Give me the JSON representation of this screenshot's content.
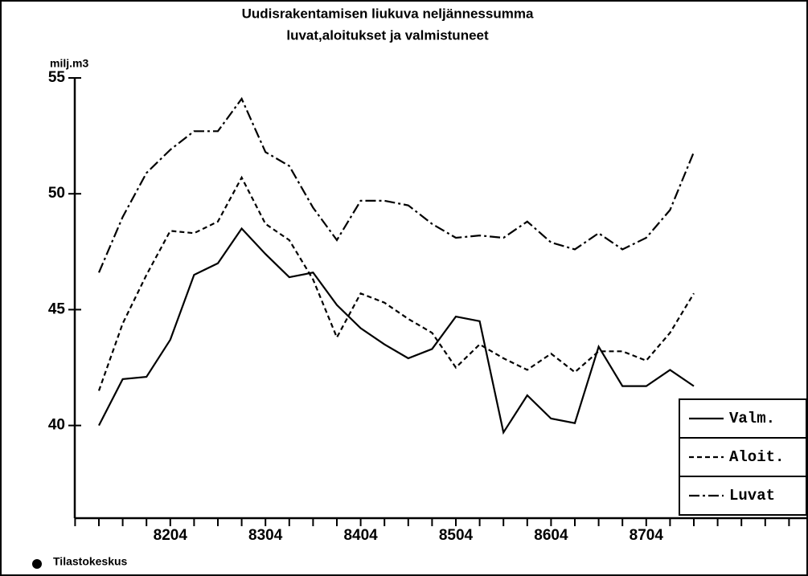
{
  "chart_data": {
    "type": "line",
    "title": "Uudisrakentamisen liukuva neljännessumma",
    "subtitle": "luvat,aloitukset ja valmistuneet",
    "y_label": "milj.m3",
    "source": "Tilastokeskus",
    "categories": [
      null,
      null,
      null,
      "8204",
      null,
      null,
      null,
      "8304",
      null,
      null,
      null,
      "8404",
      null,
      null,
      null,
      "8504",
      null,
      null,
      null,
      "8604",
      null,
      null,
      null,
      "8704",
      null,
      null
    ],
    "series": [
      {
        "name": "Valm.",
        "color": "#000000",
        "dash": "solid",
        "values": [
          40.0,
          42.0,
          42.1,
          43.7,
          46.5,
          47.0,
          48.5,
          47.4,
          46.4,
          46.6,
          45.2,
          44.2,
          43.5,
          42.9,
          43.3,
          44.7,
          44.5,
          39.7,
          41.3,
          40.3,
          40.1,
          43.4,
          41.7,
          41.7,
          42.4,
          41.7
        ]
      },
      {
        "name": "Aloit.",
        "color": "#000000",
        "dash": "dashed",
        "values": [
          41.5,
          44.4,
          46.5,
          48.4,
          48.3,
          48.8,
          50.7,
          48.7,
          48.0,
          46.3,
          43.8,
          45.7,
          45.3,
          44.6,
          44.0,
          42.5,
          43.5,
          42.9,
          42.4,
          43.1,
          42.3,
          43.2,
          43.2,
          42.8,
          44.0,
          45.7
        ]
      },
      {
        "name": "Luvat",
        "color": "#000000",
        "dash": "dashdot",
        "values": [
          46.6,
          49.0,
          50.9,
          51.9,
          52.7,
          52.7,
          54.1,
          51.8,
          51.2,
          49.4,
          48.0,
          49.7,
          49.7,
          49.5,
          48.7,
          48.1,
          48.2,
          48.1,
          48.8,
          47.9,
          47.6,
          48.3,
          47.6,
          48.1,
          49.3,
          51.8
        ]
      }
    ],
    "ylim": [
      36,
      55
    ],
    "yticks": [
      40,
      45,
      50,
      55
    ],
    "legend": "lower right"
  }
}
